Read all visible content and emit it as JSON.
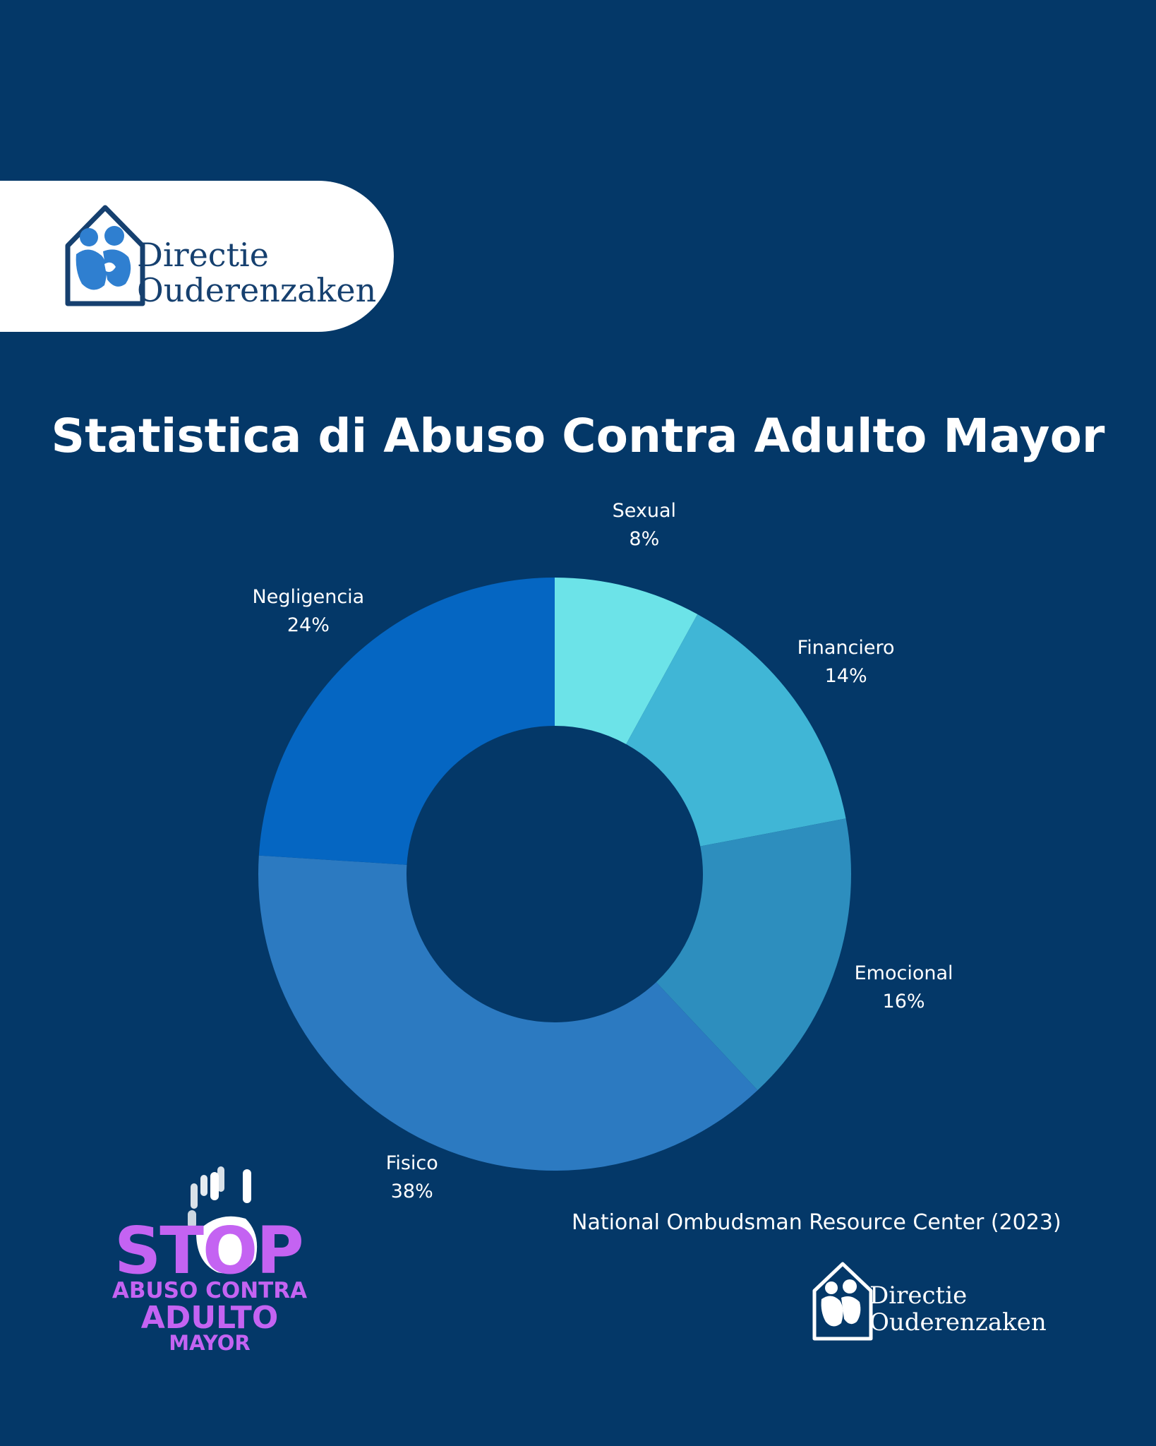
{
  "logo": {
    "line1": "Directie",
    "line2": "Ouderenzaken",
    "icon": "house-family-logo-icon"
  },
  "title": "Statistica di Abuso Contra Adulto Mayor",
  "source": "National Ombudsman Resource Center (2023)",
  "badge": {
    "stop": "STOP",
    "line1": "ABUSO CONTRA",
    "line2": "ADULTO",
    "line3": "MAYOR",
    "icon": "hand-print-icon"
  },
  "footer_logo": {
    "line1": "Directie",
    "line2": "Ouderenzaken",
    "icon": "house-family-logo-icon"
  },
  "colors": {
    "background": "#043868",
    "badge": "#c463f2",
    "Sexual": "#6ce3e8",
    "Financiero": "#40b6d6",
    "Emocional": "#2d8ebe",
    "Fisico": "#2c7ac1",
    "Negligencia": "#0566c2"
  },
  "chart_data": {
    "type": "pie",
    "title": "Statistica di Abuso Contra Adulto Mayor",
    "donut": true,
    "slices": [
      {
        "label": "Sexual",
        "value": 8,
        "value_label": "8%"
      },
      {
        "label": "Financiero",
        "value": 14,
        "value_label": "14%"
      },
      {
        "label": "Emocional",
        "value": 16,
        "value_label": "16%"
      },
      {
        "label": "Fisico",
        "value": 38,
        "value_label": "38%"
      },
      {
        "label": "Negligencia",
        "value": 24,
        "value_label": "24%"
      }
    ]
  }
}
